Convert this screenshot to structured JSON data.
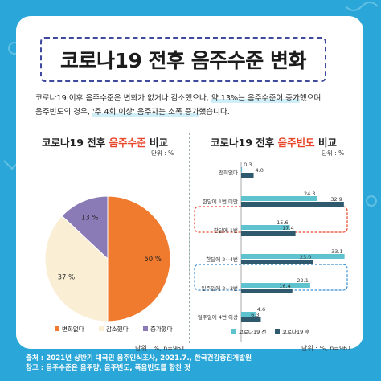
{
  "title": "코로나19 전후 음주수준 변화",
  "summary": {
    "line1_a": "코로나19 이후 음주수준은 변화가 없거나 감소했으나, ",
    "line1_b": "약 13%는 음주수준이 증가",
    "line1_c": "했으며",
    "line2_a": "음주빈도의 경우, ",
    "line2_b": "'주 4회 이상' 음주자는 소폭 증가",
    "line2_c": "했습니다."
  },
  "left": {
    "title_a": "코로나19 전후 ",
    "title_b": "음주수준",
    "title_c": " 비교",
    "unit_top": "단위 : %",
    "unit_bottom": "단위 : %, n=961"
  },
  "right": {
    "title_a": "코로나19 전후 ",
    "title_b": "음주빈도",
    "title_c": " 비교",
    "unit_top": "단위 : %",
    "unit_bottom": "단위 : %, n=961"
  },
  "footer": {
    "source": "출처 : 2021년 상반기 대국민 음주인식조사, 2021.7., 한국건강증진개발원",
    "note": "참고 : 음주수준은 음주량, 음주빈도, 폭음빈도를 합친 것"
  },
  "colors": {
    "orange": "#f07a2e",
    "beige": "#faeed4",
    "purple": "#8a7ab5",
    "teal": "#5ec3cf",
    "navy": "#2f5a6e",
    "background": "#2aa7d8"
  },
  "chart_data": [
    {
      "type": "pie",
      "categories": [
        "변화없다",
        "감소했다",
        "증가했다"
      ],
      "values": [
        50,
        37,
        13
      ],
      "labels": [
        "50 %",
        "37 %",
        "13 %"
      ],
      "legend": "bottom"
    },
    {
      "type": "bar",
      "orientation": "horizontal",
      "categories": [
        "전혀없다",
        "한달에 1번 미만",
        "한달에 1번",
        "한달에 2~4번",
        "일주일에 2~3번",
        "일주일에 4번 이상"
      ],
      "series": [
        {
          "name": "코로나19 전",
          "values": [
            0.3,
            24.3,
            15.6,
            33.1,
            22.1,
            4.6
          ]
        },
        {
          "name": "코로나19 후",
          "values": [
            4.0,
            32.9,
            17.4,
            23.0,
            16.4,
            6.3
          ]
        }
      ],
      "labels": [
        [
          "0.3",
          "24.3",
          "15.6",
          "33.1",
          "22.1",
          "4.6"
        ],
        [
          "4.0",
          "32.9",
          "17.4",
          "23.0",
          "16.4",
          "6.3"
        ]
      ],
      "highlighted_categories": [
        "한달에 1번 미만",
        "한달에 2~4번"
      ],
      "legend": "bottom"
    }
  ]
}
